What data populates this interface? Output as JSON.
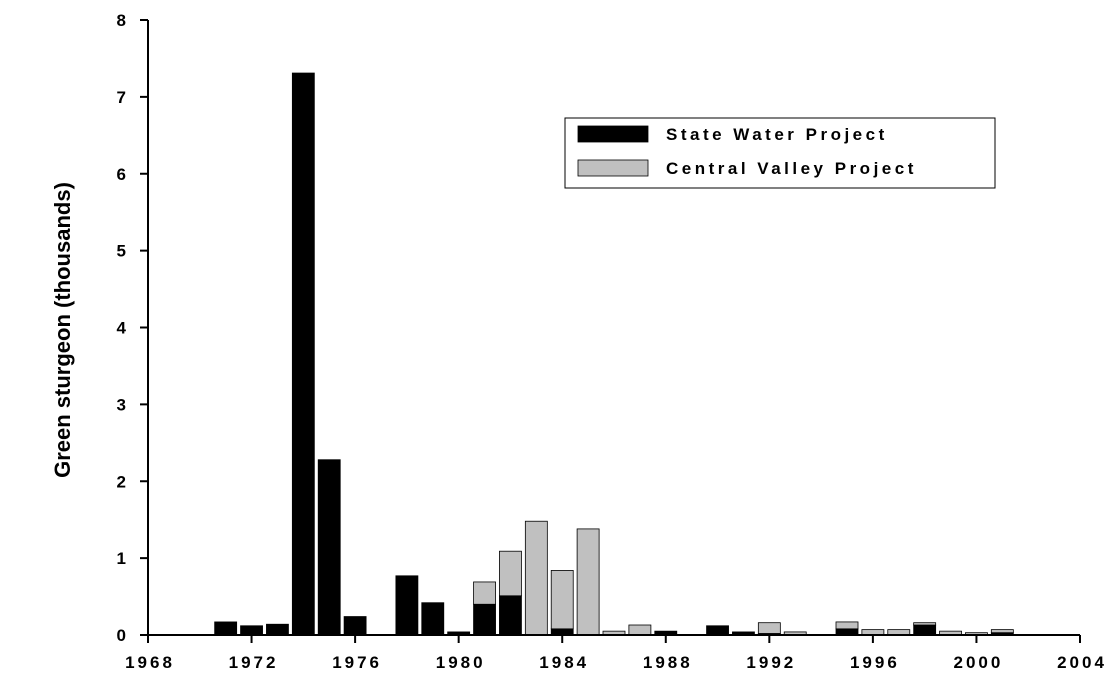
{
  "chart_data": {
    "type": "stacked-bar",
    "y_label": "Green sturgeon (thousands)",
    "x": [
      1971,
      1972,
      1973,
      1974,
      1975,
      1976,
      1977,
      1978,
      1979,
      1980,
      1981,
      1982,
      1983,
      1984,
      1985,
      1986,
      1987,
      1988,
      1989,
      1990,
      1991,
      1992,
      1993,
      1994,
      1995,
      1996,
      1997,
      1998,
      1999,
      2000,
      2001
    ],
    "series": [
      {
        "name": "State Water Project",
        "color": "#000000",
        "values": [
          0.17,
          0.12,
          0.14,
          7.31,
          2.28,
          0.24,
          0,
          0.77,
          0.42,
          0.04,
          0.4,
          0.51,
          0,
          0.08,
          0,
          0,
          0,
          0.05,
          0,
          0.12,
          0.04,
          0.02,
          0,
          0,
          0.08,
          0,
          0,
          0.13,
          0,
          0,
          0.03
        ]
      },
      {
        "name": "Central Valley Project",
        "color": "#c0c0c0",
        "values": [
          0,
          0,
          0,
          0,
          0,
          0,
          0,
          0,
          0,
          0,
          0.29,
          0.58,
          1.48,
          0.76,
          1.38,
          0.05,
          0.13,
          0,
          0,
          0,
          0,
          0.14,
          0.04,
          0,
          0.09,
          0.07,
          0.07,
          0.03,
          0.05,
          0.03,
          0.04
        ]
      }
    ],
    "xlim": [
      1968,
      2004
    ],
    "xticks": [
      1968,
      1972,
      1976,
      1980,
      1984,
      1988,
      1992,
      1996,
      2000,
      2004
    ],
    "ylim": [
      0,
      8
    ],
    "yticks": [
      0,
      1,
      2,
      3,
      4,
      5,
      6,
      7,
      8
    ],
    "legend": "upper right"
  }
}
